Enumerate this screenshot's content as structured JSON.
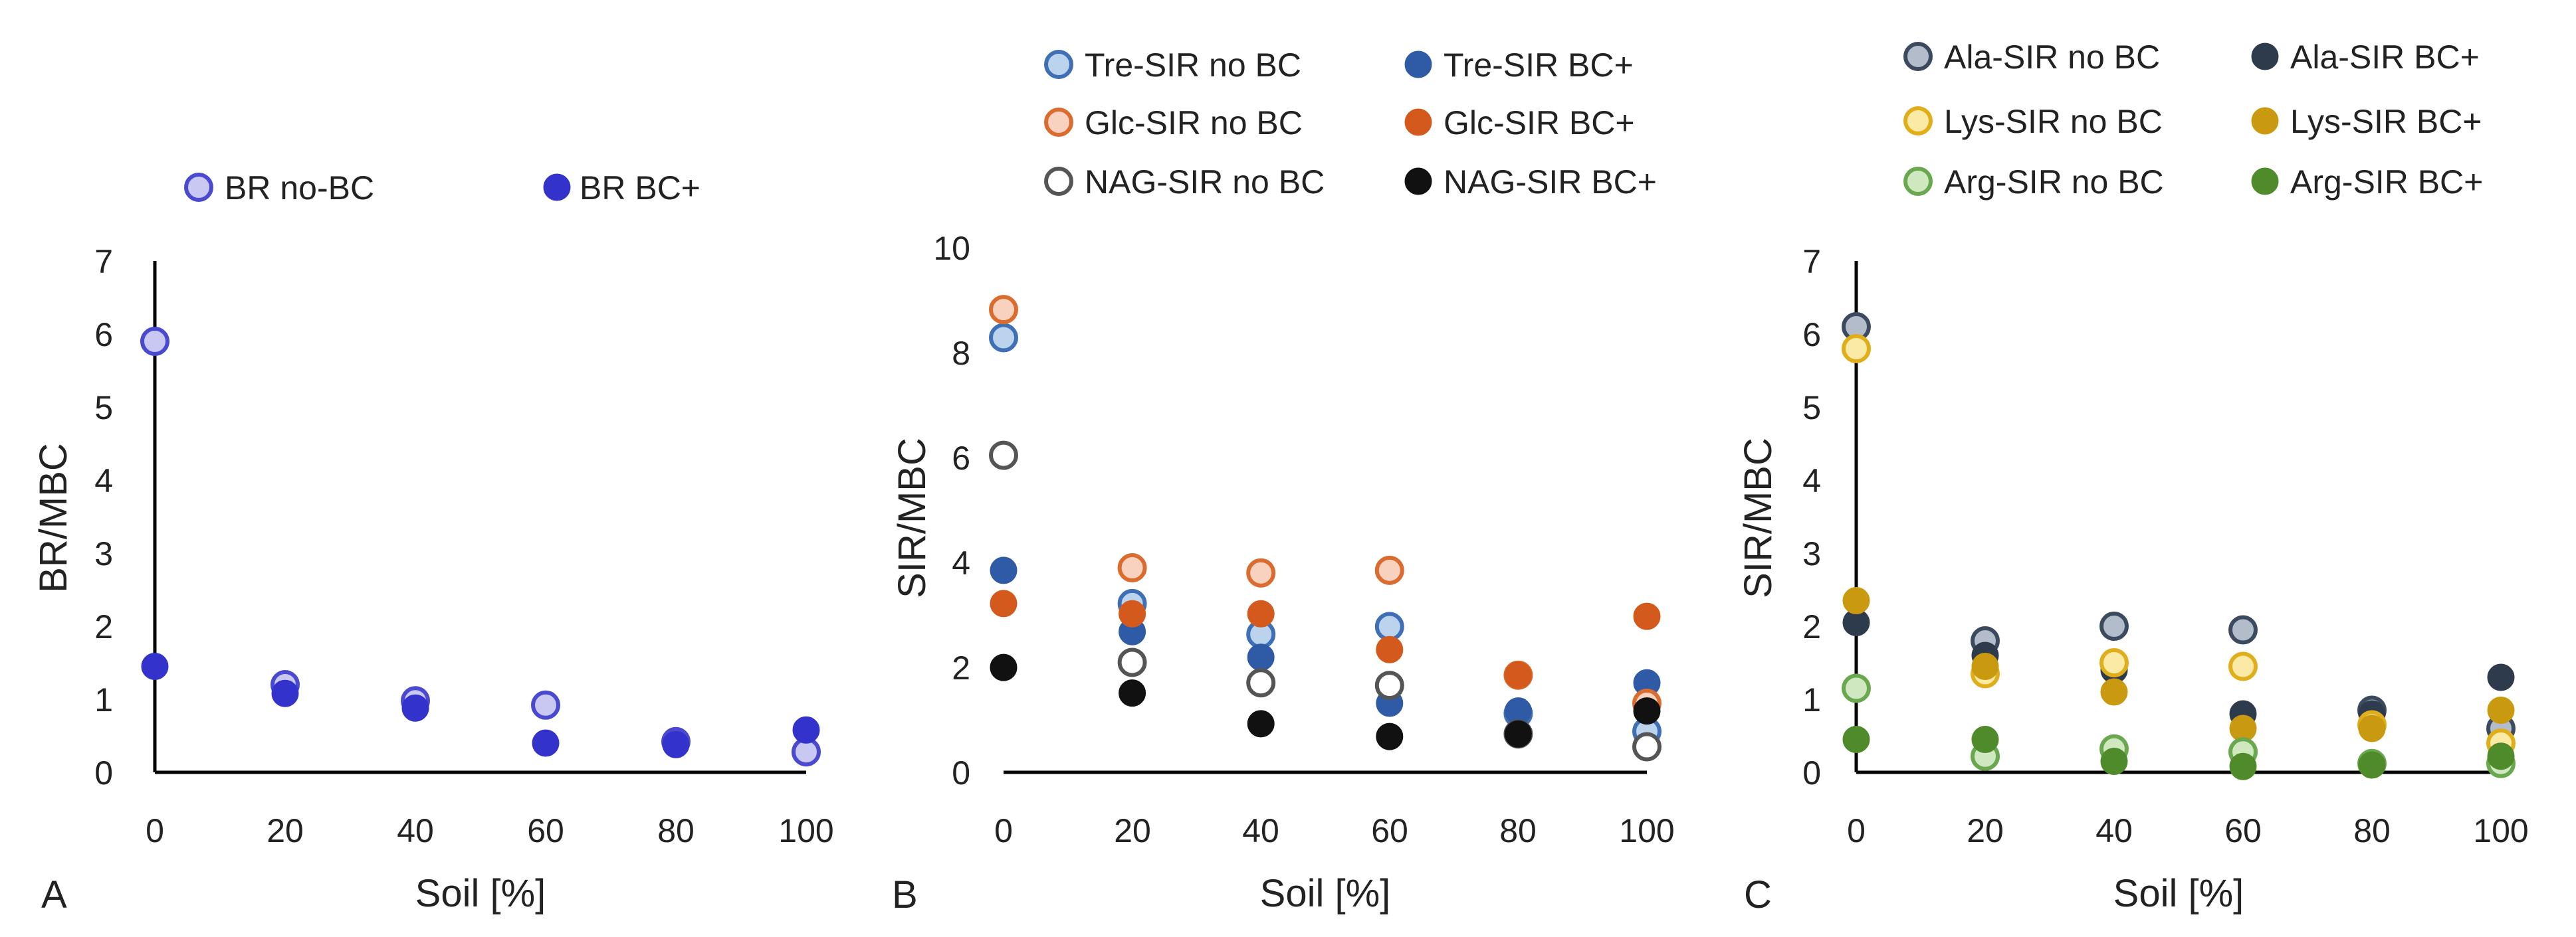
{
  "chart_data": [
    {
      "type": "scatter",
      "panel_label": "A",
      "xlabel": "Soil [%]",
      "ylabel": "BR/MBC",
      "xlim": [
        0,
        100
      ],
      "ylim": [
        0,
        7
      ],
      "xticks": [
        "0",
        "20",
        "40",
        "60",
        "80",
        "100"
      ],
      "yticks": [
        "0",
        "1",
        "2",
        "3",
        "4",
        "5",
        "6",
        "7"
      ],
      "legend_position": "top",
      "series": [
        {
          "name": "BR no-BC",
          "fill": "#c8c8f2",
          "stroke": "#4a4ad0",
          "hollow": true,
          "x": [
            0,
            20,
            40,
            60,
            80,
            100
          ],
          "values": [
            5.9,
            1.2,
            0.98,
            0.92,
            0.42,
            0.28
          ]
        },
        {
          "name": "BR BC+",
          "fill": "#3333cc",
          "stroke": "#3333cc",
          "hollow": false,
          "x": [
            0,
            20,
            40,
            60,
            80,
            100
          ],
          "values": [
            1.45,
            1.08,
            0.88,
            0.4,
            0.38,
            0.58
          ]
        }
      ]
    },
    {
      "type": "scatter",
      "panel_label": "B",
      "xlabel": "Soil [%]",
      "ylabel": "SIR/MBC",
      "xlim": [
        0,
        100
      ],
      "ylim": [
        0,
        10
      ],
      "xticks": [
        "0",
        "20",
        "40",
        "60",
        "80",
        "100"
      ],
      "yticks": [
        "0",
        "2",
        "4",
        "6",
        "8",
        "10"
      ],
      "legend_position": "top",
      "series": [
        {
          "name": "Tre-SIR no BC",
          "fill": "#bcd3ee",
          "stroke": "#3f6fb5",
          "hollow": true,
          "x": [
            0,
            20,
            40,
            60,
            80,
            100
          ],
          "values": [
            8.5,
            3.3,
            2.7,
            2.85,
            1.15,
            0.8
          ]
        },
        {
          "name": "Tre-SIR BC+",
          "fill": "#2f5aa6",
          "stroke": "#2f5aa6",
          "hollow": false,
          "x": [
            0,
            20,
            40,
            60,
            80,
            100
          ],
          "values": [
            3.95,
            2.75,
            2.25,
            1.35,
            1.2,
            1.75
          ]
        },
        {
          "name": "Glc-SIR no BC",
          "fill": "#f8d2bf",
          "stroke": "#d96c2e",
          "hollow": true,
          "x": [
            0,
            20,
            40,
            60,
            80,
            100
          ],
          "values": [
            9.05,
            4.0,
            3.9,
            3.95,
            1.9,
            1.35
          ]
        },
        {
          "name": "Glc-SIR BC+",
          "fill": "#d35a1c",
          "stroke": "#d35a1c",
          "hollow": false,
          "x": [
            0,
            20,
            40,
            60,
            80,
            100
          ],
          "values": [
            3.3,
            3.1,
            3.1,
            2.4,
            1.9,
            3.05
          ]
        },
        {
          "name": "NAG-SIR no BC",
          "fill": "#ffffff",
          "stroke": "#555555",
          "hollow": true,
          "x": [
            0,
            20,
            40,
            60,
            80,
            100
          ],
          "values": [
            6.2,
            2.15,
            1.75,
            1.7,
            0.75,
            0.5
          ]
        },
        {
          "name": "NAG-SIR BC+",
          "fill": "#111111",
          "stroke": "#111111",
          "hollow": false,
          "x": [
            0,
            20,
            40,
            60,
            80,
            100
          ],
          "values": [
            2.05,
            1.55,
            0.95,
            0.7,
            0.75,
            1.2
          ]
        }
      ]
    },
    {
      "type": "scatter",
      "panel_label": "C",
      "xlabel": "Soil [%]",
      "ylabel": "SIR/MBC",
      "xlim": [
        0,
        100
      ],
      "ylim": [
        0,
        7
      ],
      "xticks": [
        "0",
        "20",
        "40",
        "60",
        "80",
        "100"
      ],
      "yticks": [
        "0",
        "1",
        "2",
        "3",
        "4",
        "5",
        "6",
        "7"
      ],
      "legend_position": "top",
      "series": [
        {
          "name": "Ala-SIR no BC",
          "fill": "#b2bccb",
          "stroke": "#3b4a5e",
          "hollow": true,
          "x": [
            0,
            20,
            40,
            60,
            80,
            100
          ],
          "values": [
            6.1,
            1.8,
            2.0,
            1.95,
            0.85,
            0.6
          ]
        },
        {
          "name": "Ala-SIR BC+",
          "fill": "#2e3b4d",
          "stroke": "#2e3b4d",
          "hollow": false,
          "x": [
            0,
            20,
            40,
            60,
            80,
            100
          ],
          "values": [
            2.05,
            1.6,
            1.4,
            0.8,
            0.8,
            1.3
          ]
        },
        {
          "name": "Lys-SIR no BC",
          "fill": "#fbeaa6",
          "stroke": "#e0ae1a",
          "hollow": true,
          "x": [
            0,
            20,
            40,
            60,
            80,
            100
          ],
          "values": [
            5.8,
            1.35,
            1.5,
            1.45,
            0.65,
            0.4
          ]
        },
        {
          "name": "Lys-SIR BC+",
          "fill": "#c99a10",
          "stroke": "#c99a10",
          "hollow": false,
          "x": [
            0,
            20,
            40,
            60,
            80,
            100
          ],
          "values": [
            2.35,
            1.45,
            1.1,
            0.6,
            0.6,
            0.85
          ]
        },
        {
          "name": "Arg-SIR no BC",
          "fill": "#cfe8bf",
          "stroke": "#6aa84f",
          "hollow": true,
          "x": [
            0,
            20,
            40,
            60,
            80,
            100
          ],
          "values": [
            1.15,
            0.22,
            0.32,
            0.28,
            0.12,
            0.12
          ]
        },
        {
          "name": "Arg-SIR BC+",
          "fill": "#4f8a2b",
          "stroke": "#4f8a2b",
          "hollow": false,
          "x": [
            0,
            20,
            40,
            60,
            80,
            100
          ],
          "values": [
            0.45,
            0.45,
            0.15,
            0.08,
            0.1,
            0.22
          ]
        }
      ]
    }
  ]
}
